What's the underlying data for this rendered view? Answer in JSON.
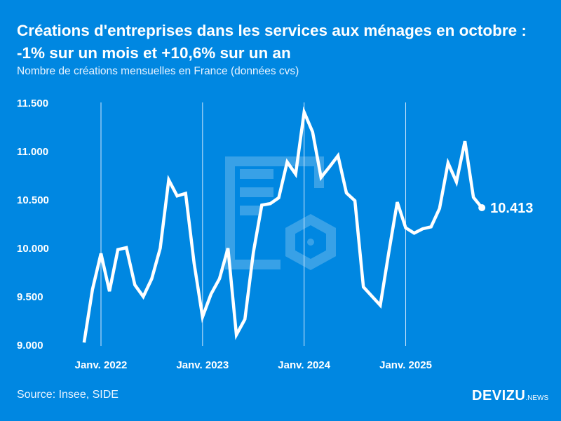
{
  "header": {
    "title": "Créations d'entreprises dans les services aux ménages en octobre : -1% sur un mois et +10,6% sur un an",
    "subtitle": "Nombre de créations mensuelles en France (données cvs)"
  },
  "footer": {
    "source": "Source: Insee, SIDE",
    "logo_main": "DEVIZU",
    "logo_suffix": ".NEWS"
  },
  "colors": {
    "background": "#0087E1",
    "line": "#FFFFFF"
  },
  "chart_data": {
    "type": "line",
    "title": "Créations d'entreprises dans les services aux ménages en octobre : -1% sur un mois et +10,6% sur un an",
    "subtitle": "Nombre de créations mensuelles en France (données cvs)",
    "xlabel": "",
    "ylabel": "",
    "ylim": [
      9000,
      11500
    ],
    "yticks": [
      9000,
      9500,
      10000,
      10500,
      11000,
      11500
    ],
    "ytick_labels": [
      "9.000",
      "9.500",
      "10.000",
      "10.500",
      "11.000",
      "11.500"
    ],
    "xtick_labels": [
      "Janv. 2022",
      "Janv. 2023",
      "Janv. 2024",
      "Janv. 2025"
    ],
    "xtick_months": [
      "2022-01",
      "2023-01",
      "2024-01",
      "2025-01"
    ],
    "grid": "vertical lines at January of each year",
    "legend": "none",
    "last_value_label": "10.413",
    "x": [
      "2021-11",
      "2021-12",
      "2022-01",
      "2022-02",
      "2022-03",
      "2022-04",
      "2022-05",
      "2022-06",
      "2022-07",
      "2022-08",
      "2022-09",
      "2022-10",
      "2022-11",
      "2022-12",
      "2023-01",
      "2023-02",
      "2023-03",
      "2023-04",
      "2023-05",
      "2023-06",
      "2023-07",
      "2023-08",
      "2023-09",
      "2023-10",
      "2023-11",
      "2023-12",
      "2024-01",
      "2024-02",
      "2024-03",
      "2024-04",
      "2024-05",
      "2024-06",
      "2024-07",
      "2024-08",
      "2024-09",
      "2024-10",
      "2024-11",
      "2024-12",
      "2025-01",
      "2025-02",
      "2025-03",
      "2025-04",
      "2025-05",
      "2025-06",
      "2025-07",
      "2025-08",
      "2025-09",
      "2025-10"
    ],
    "values": [
      9020,
      9570,
      9940,
      9550,
      9980,
      10000,
      9615,
      9495,
      9680,
      9995,
      10700,
      10535,
      10560,
      9840,
      9285,
      9520,
      9680,
      9995,
      9100,
      9260,
      9950,
      10440,
      10455,
      10515,
      10885,
      10760,
      11400,
      11195,
      10725,
      10835,
      10950,
      10565,
      10485,
      9595,
      9500,
      9405,
      9950,
      10470,
      10205,
      10150,
      10195,
      10215,
      10405,
      10875,
      10680,
      11100,
      10520,
      10413
    ]
  }
}
